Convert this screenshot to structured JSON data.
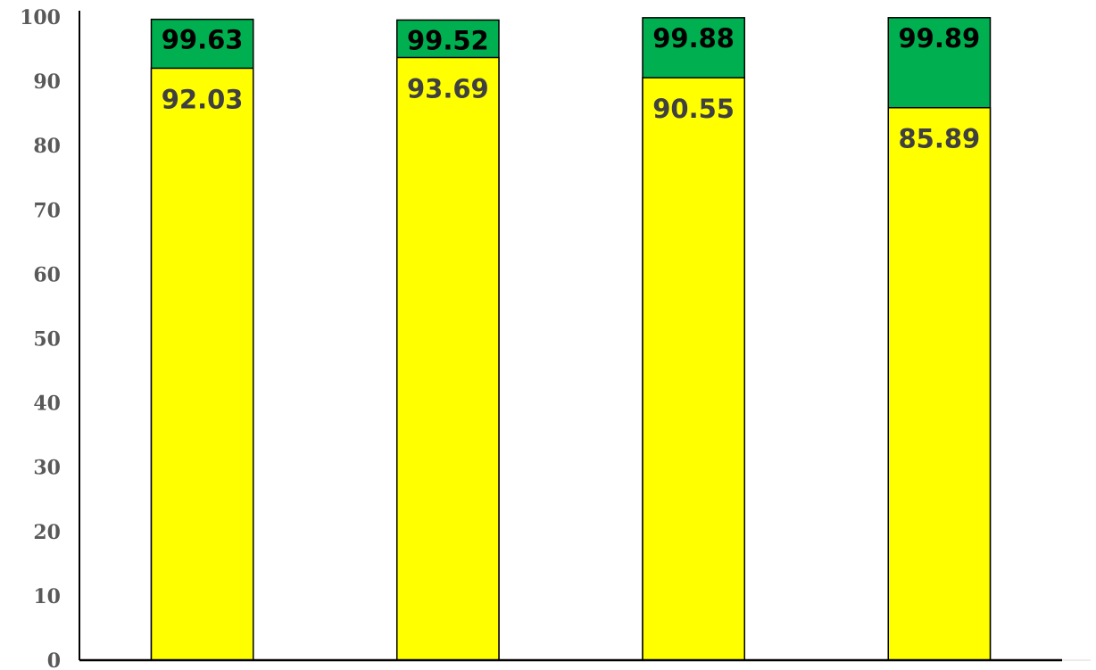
{
  "chart_data": {
    "type": "bar",
    "stacked": false,
    "overlapping": true,
    "categories": [
      "",
      "",
      "",
      ""
    ],
    "series": [
      {
        "values": [
          99.63,
          99.52,
          99.88,
          99.89
        ],
        "color": "#00b050",
        "label_color": "#000000"
      },
      {
        "values": [
          92.03,
          93.69,
          90.55,
          85.89
        ],
        "color": "#ffff00",
        "label_color": "#404040"
      }
    ],
    "title": "",
    "xlabel": "",
    "ylabel": "",
    "ylim": [
      0,
      100
    ],
    "yticks": [
      0,
      10,
      20,
      30,
      40,
      50,
      60,
      70,
      80,
      90,
      100
    ],
    "grid": false,
    "legend": "none",
    "bar_outline_color": "#000000",
    "axis_color": "#000000",
    "tick_label_color": "#595959"
  }
}
